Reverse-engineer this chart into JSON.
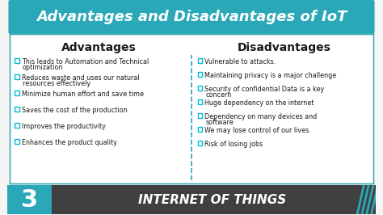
{
  "title": "Advantages and Disadvantages of IoT",
  "title_bg": "#2aa8b8",
  "title_color": "#ffffff",
  "col_header_color": "#1a1a1a",
  "col_divider_color": "#2aa8b8",
  "adv_header": "Advantages",
  "dis_header": "Disadvantages",
  "advantages": [
    "This leads to Automation and Technical\noptimization",
    "Reduces waste and uses our natural\nresources effectively",
    "Minimize human effort and save time",
    "Saves the cost of the production",
    "Improves the productivity",
    "Enhances the product quality"
  ],
  "disadvantages": [
    "Vulnerable to attacks.",
    "Maintaining privacy is a major challenge",
    "Security of confidential Data is a key\nconcern",
    "Huge dependency on the internet",
    "Dependency on many devices and\nsoftware",
    "We may lose control of our lives.",
    "Risk of losing jobs"
  ],
  "item_color": "#00bcd4",
  "item_text_color": "#1a1a1a",
  "bg_color": "#f5f5f5",
  "footer_bg": "#404040",
  "footer_teal": "#2aa8b8",
  "footer_number": "3",
  "footer_text": "INTERNET OF THINGS",
  "footer_text_color": "#ffffff",
  "footer_number_color": "#ffffff"
}
